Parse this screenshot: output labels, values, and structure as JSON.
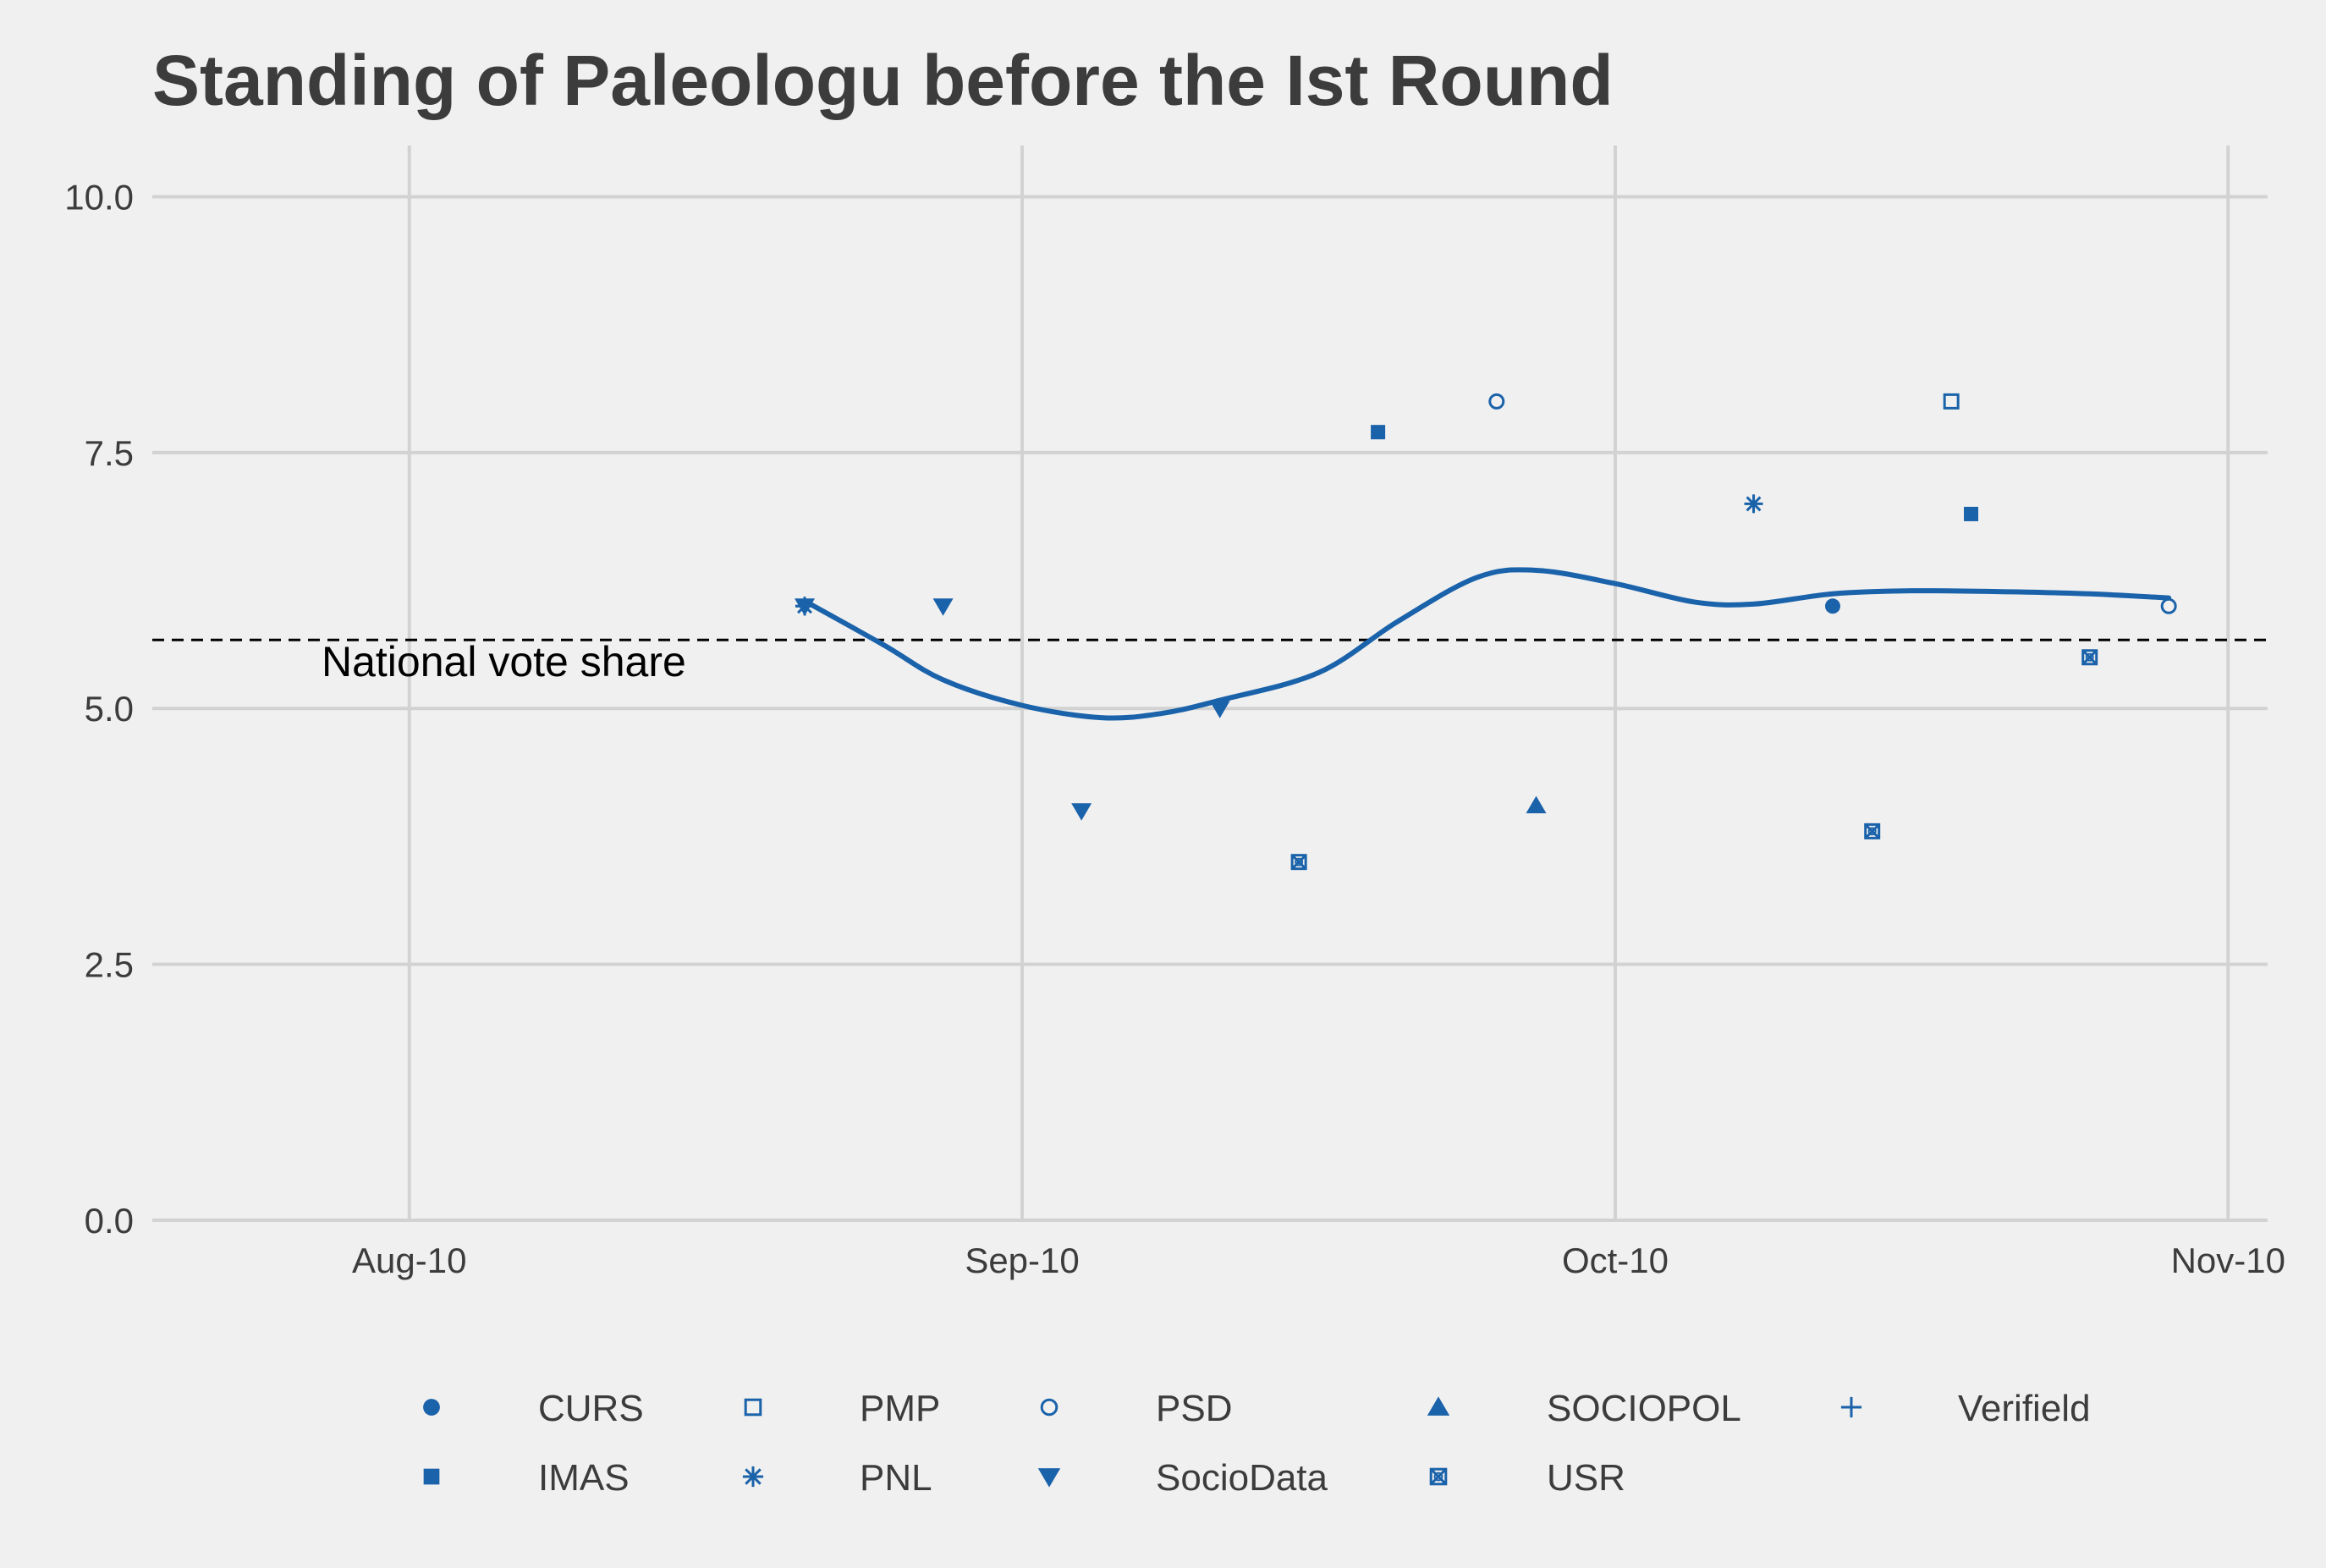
{
  "chart_data": {
    "type": "scatter",
    "title": "Standing of Paleologu before the Ist Round",
    "xlabel": "",
    "ylabel": "",
    "x_ticks": [
      "2009-08-10",
      "2009-09-10",
      "2009-10-10",
      "2009-11-10"
    ],
    "x_tick_labels": [
      "Aug-10",
      "Sep-10",
      "Oct-10",
      "Nov-10"
    ],
    "xlim": [
      "2009-07-28",
      "2009-11-12"
    ],
    "y_ticks": [
      0,
      2.5,
      5,
      7.5,
      10
    ],
    "y_tick_labels": [
      "0.0",
      "2.5",
      "5.0",
      "7.5",
      "10.0"
    ],
    "ylim": [
      0,
      10.5
    ],
    "grid": true,
    "legend_position": "bottom",
    "colors": {
      "points": "#1a62aa",
      "trend": "#1a62aa",
      "reference": "#000000",
      "grid": "#d2d2d2",
      "background": "#f0f0f0",
      "text": "#3c3c3c"
    },
    "reference_line": {
      "y": 5.67,
      "label": "National vote share",
      "style": "dashed"
    },
    "legend": [
      {
        "name": "CURS",
        "shape": "circle-filled"
      },
      {
        "name": "PMP",
        "shape": "square-open"
      },
      {
        "name": "PSD",
        "shape": "circle-open"
      },
      {
        "name": "SOCIOPOL",
        "shape": "triangle-up-filled"
      },
      {
        "name": "Verifield",
        "shape": "plus"
      },
      {
        "name": "IMAS",
        "shape": "square-filled"
      },
      {
        "name": "PNL",
        "shape": "asterisk"
      },
      {
        "name": "SocioData",
        "shape": "triangle-down-filled"
      },
      {
        "name": "USR",
        "shape": "square-cross"
      }
    ],
    "points": [
      {
        "pollster": "Verifield",
        "date": "2009-08-30",
        "y": 6.0
      },
      {
        "pollster": "PNL",
        "date": "2009-08-30",
        "y": 6.0
      },
      {
        "pollster": "SocioData",
        "date": "2009-08-30",
        "y": 6.0
      },
      {
        "pollster": "SocioData",
        "date": "2009-09-06",
        "y": 6.0
      },
      {
        "pollster": "SocioData",
        "date": "2009-09-13",
        "y": 4.0
      },
      {
        "pollster": "SocioData",
        "date": "2009-09-20",
        "y": 5.0
      },
      {
        "pollster": "USR",
        "date": "2009-09-24",
        "y": 3.5
      },
      {
        "pollster": "IMAS",
        "date": "2009-09-28",
        "y": 7.7
      },
      {
        "pollster": "PSD",
        "date": "2009-10-04",
        "y": 8.0
      },
      {
        "pollster": "SOCIOPOL",
        "date": "2009-10-06",
        "y": 4.05
      },
      {
        "pollster": "PNL",
        "date": "2009-10-17",
        "y": 7.0
      },
      {
        "pollster": "CURS",
        "date": "2009-10-21",
        "y": 6.0
      },
      {
        "pollster": "USR",
        "date": "2009-10-23",
        "y": 3.8
      },
      {
        "pollster": "PMP",
        "date": "2009-10-27",
        "y": 8.0
      },
      {
        "pollster": "IMAS",
        "date": "2009-10-28",
        "y": 6.9
      },
      {
        "pollster": "USR",
        "date": "2009-11-03",
        "y": 5.5
      },
      {
        "pollster": "PSD",
        "date": "2009-11-07",
        "y": 6.0
      }
    ],
    "trend": {
      "dates": [
        "2009-08-30",
        "2009-09-03",
        "2009-09-06",
        "2009-09-10",
        "2009-09-14",
        "2009-09-17",
        "2009-09-20",
        "2009-09-25",
        "2009-09-29",
        "2009-10-03",
        "2009-10-06",
        "2009-10-10",
        "2009-10-14",
        "2009-10-17",
        "2009-10-21",
        "2009-10-25",
        "2009-10-30",
        "2009-11-03",
        "2009-11-07"
      ],
      "values": [
        6.05,
        5.62,
        5.28,
        5.03,
        4.91,
        4.95,
        5.08,
        5.35,
        5.85,
        6.28,
        6.35,
        6.22,
        6.04,
        6.02,
        6.12,
        6.15,
        6.14,
        6.12,
        6.08
      ]
    }
  }
}
